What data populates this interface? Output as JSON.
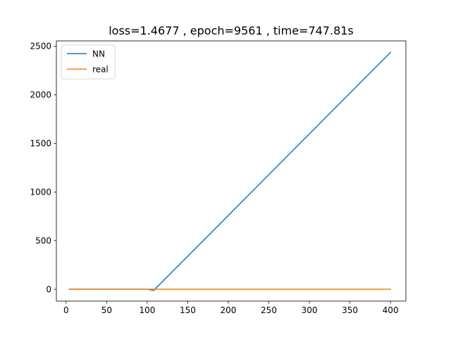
{
  "chart_data": {
    "type": "line",
    "title": "loss=1.4677 , epoch=9561 , time=747.81s",
    "xlabel": "",
    "ylabel": "",
    "xlim": [
      -12,
      419
    ],
    "ylim": [
      -122,
      2554
    ],
    "xticks": [
      0,
      50,
      100,
      150,
      200,
      250,
      300,
      350,
      400
    ],
    "yticks": [
      0,
      500,
      1000,
      1500,
      2000,
      2500
    ],
    "grid": false,
    "legend_position": "upper-left",
    "series": [
      {
        "name": "NN",
        "color": "#1f77b4",
        "x": [
          4,
          100,
          108,
          400
        ],
        "y": [
          0,
          0,
          -12,
          2436
        ]
      },
      {
        "name": "real",
        "color": "#ff7f0e",
        "x": [
          4,
          100,
          200,
          300,
          400
        ],
        "y": [
          0,
          0,
          0,
          0,
          0
        ]
      }
    ]
  }
}
